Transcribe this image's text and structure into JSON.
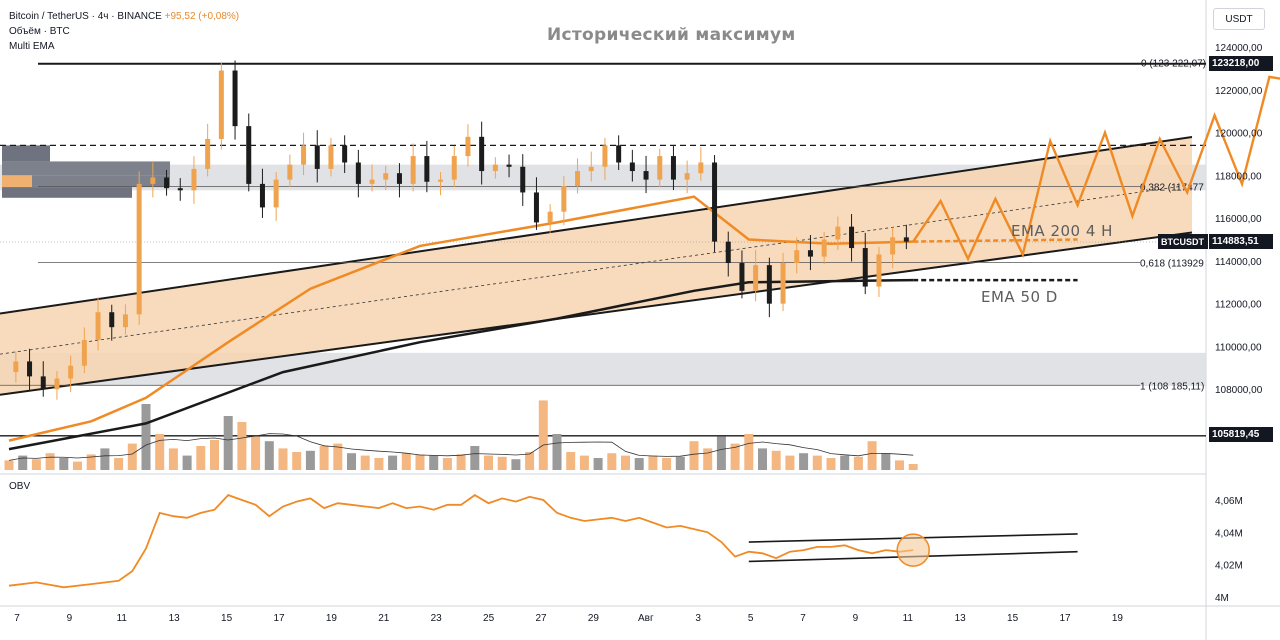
{
  "legend": {
    "symbol": "Bitcoin / TetherUS · 4ч · BINANCE",
    "change": "+95,52 (+0,08%)",
    "volume": "Объём · BTC",
    "indicator": "Multi EMA"
  },
  "annotations": {
    "ath": "Исторический максимум",
    "ema200": "EMA 200 4 H",
    "ema50": "EMA 50 D"
  },
  "currency_button": "USDT",
  "obv_label": "OBV",
  "price_tags": {
    "ath": "123218,00",
    "current_symbol": "BTCUSDT",
    "current": "114883,51",
    "support": "105819,45"
  },
  "fib_labels": {
    "f0": "0 (123 222,07)",
    "f382": "0,382 (117477",
    "f618": "0,618 (113929",
    "f1": "1 (108 185,11)"
  },
  "colors": {
    "orange": "#f08a24",
    "band_fill": "#f7d5b0",
    "gray_zone": "#dcdde0",
    "candle": "#f0a34e",
    "candle_dark": "#1c1c1c",
    "volume_up": "#f5b781",
    "volume_down": "#9a9a9a"
  },
  "chart_data": [
    {
      "type": "candlestick",
      "symbol": "BTCUSDT",
      "timeframe": "4h",
      "ylim": [
        104800,
        124800
      ],
      "y_ticks": [
        {
          "v": 124000,
          "label": "124000,00"
        },
        {
          "v": 122000,
          "label": "122000,00"
        },
        {
          "v": 120000,
          "label": "120000,00"
        },
        {
          "v": 118000,
          "label": "118000,00"
        },
        {
          "v": 116000,
          "label": "116000,00"
        },
        {
          "v": 114000,
          "label": "114000,00"
        },
        {
          "v": 112000,
          "label": "112000,00"
        },
        {
          "v": 110000,
          "label": "110000,00"
        },
        {
          "v": 108000,
          "label": "108000,00"
        }
      ],
      "x_ticks": [
        "7",
        "9",
        "11",
        "13",
        "15",
        "17",
        "19",
        "21",
        "23",
        "25",
        "27",
        "29",
        "Авг",
        "3",
        "5",
        "7",
        "9",
        "11",
        "13",
        "15",
        "17",
        "19"
      ],
      "price_path": [
        [
          0,
          108800
        ],
        [
          1,
          109300
        ],
        [
          2,
          108600
        ],
        [
          3,
          108000
        ],
        [
          4,
          108500
        ],
        [
          5,
          109100
        ],
        [
          6,
          110300
        ],
        [
          7,
          111600
        ],
        [
          8,
          110900
        ],
        [
          9,
          111500
        ],
        [
          10,
          117600
        ],
        [
          11,
          117900
        ],
        [
          12,
          117400
        ],
        [
          13,
          117300
        ],
        [
          14,
          118300
        ],
        [
          15,
          119700
        ],
        [
          16,
          122900
        ],
        [
          17,
          120300
        ],
        [
          18,
          117600
        ],
        [
          19,
          116500
        ],
        [
          20,
          117800
        ],
        [
          21,
          118500
        ],
        [
          22,
          119400
        ],
        [
          23,
          118300
        ],
        [
          24,
          119400
        ],
        [
          25,
          118600
        ],
        [
          26,
          117600
        ],
        [
          27,
          117800
        ],
        [
          28,
          118100
        ],
        [
          29,
          117600
        ],
        [
          30,
          118900
        ],
        [
          31,
          117700
        ],
        [
          32,
          117800
        ],
        [
          33,
          118900
        ],
        [
          34,
          119800
        ],
        [
          35,
          118200
        ],
        [
          36,
          118500
        ],
        [
          37,
          118400
        ],
        [
          38,
          117200
        ],
        [
          39,
          115800
        ],
        [
          40,
          116300
        ],
        [
          41,
          117500
        ],
        [
          42,
          118200
        ],
        [
          43,
          118400
        ],
        [
          44,
          119400
        ],
        [
          45,
          118600
        ],
        [
          46,
          118200
        ],
        [
          47,
          117800
        ],
        [
          48,
          118900
        ],
        [
          49,
          117800
        ],
        [
          50,
          118100
        ],
        [
          51,
          118600
        ],
        [
          52,
          114900
        ],
        [
          53,
          113900
        ],
        [
          54,
          112600
        ],
        [
          55,
          113800
        ],
        [
          56,
          112000
        ],
        [
          57,
          113900
        ],
        [
          58,
          114500
        ],
        [
          59,
          114200
        ],
        [
          60,
          115000
        ],
        [
          61,
          115600
        ],
        [
          62,
          114600
        ],
        [
          63,
          112800
        ],
        [
          64,
          114300
        ],
        [
          65,
          115100
        ],
        [
          66,
          114900
        ]
      ],
      "fib_levels": [
        {
          "level": "0",
          "value": 123222
        },
        {
          "level": "0.382",
          "value": 117477
        },
        {
          "level": "0.618",
          "value": 113929
        },
        {
          "level": "1",
          "value": 108185
        }
      ],
      "horizontal_levels": {
        "ath": 123218,
        "resistance_dashed": 119400,
        "current": 114883.51,
        "support": 105819.45
      },
      "ema200_4h": [
        [
          0,
          105600
        ],
        [
          6,
          106500
        ],
        [
          10,
          107600
        ],
        [
          16,
          110200
        ],
        [
          22,
          112700
        ],
        [
          30,
          114700
        ],
        [
          40,
          115800
        ],
        [
          50,
          117000
        ],
        [
          54,
          115000
        ],
        [
          60,
          114800
        ],
        [
          66,
          114900
        ],
        [
          78,
          115000
        ]
      ],
      "ema50_d": [
        [
          0,
          105200
        ],
        [
          10,
          106400
        ],
        [
          20,
          108800
        ],
        [
          30,
          110200
        ],
        [
          40,
          111300
        ],
        [
          50,
          112600
        ],
        [
          54,
          113000
        ],
        [
          66,
          113100
        ],
        [
          78,
          113100
        ]
      ],
      "channel": {
        "upper": [
          [
            0,
            111600
          ],
          [
            78,
            119000
          ]
        ],
        "lower": [
          [
            0,
            107800
          ],
          [
            78,
            114600
          ]
        ]
      },
      "projection_zigzag": [
        [
          66,
          114900
        ],
        [
          68,
          116800
        ],
        [
          70,
          114100
        ],
        [
          72,
          116900
        ],
        [
          74,
          114300
        ],
        [
          76,
          119600
        ],
        [
          78,
          116600
        ],
        [
          80,
          120000
        ],
        [
          82,
          116100
        ],
        [
          84,
          119700
        ],
        [
          86,
          117200
        ],
        [
          88,
          120800
        ],
        [
          90,
          117600
        ],
        [
          92,
          122600
        ],
        [
          94,
          122400
        ]
      ],
      "volume": [
        {
          "x": 0,
          "v": 0.08
        },
        {
          "x": 1,
          "v": 0.12
        },
        {
          "x": 2,
          "v": 0.09
        },
        {
          "x": 3,
          "v": 0.14
        },
        {
          "x": 4,
          "v": 0.1
        },
        {
          "x": 5,
          "v": 0.07
        },
        {
          "x": 6,
          "v": 0.13
        },
        {
          "x": 7,
          "v": 0.18
        },
        {
          "x": 8,
          "v": 0.1
        },
        {
          "x": 9,
          "v": 0.22
        },
        {
          "x": 10,
          "v": 0.55
        },
        {
          "x": 11,
          "v": 0.3
        },
        {
          "x": 12,
          "v": 0.18
        },
        {
          "x": 13,
          "v": 0.12
        },
        {
          "x": 14,
          "v": 0.2
        },
        {
          "x": 15,
          "v": 0.25
        },
        {
          "x": 16,
          "v": 0.45
        },
        {
          "x": 17,
          "v": 0.4
        },
        {
          "x": 18,
          "v": 0.28
        },
        {
          "x": 19,
          "v": 0.24
        },
        {
          "x": 20,
          "v": 0.18
        },
        {
          "x": 21,
          "v": 0.15
        },
        {
          "x": 22,
          "v": 0.16
        },
        {
          "x": 23,
          "v": 0.2
        },
        {
          "x": 24,
          "v": 0.22
        },
        {
          "x": 25,
          "v": 0.14
        },
        {
          "x": 26,
          "v": 0.12
        },
        {
          "x": 27,
          "v": 0.1
        },
        {
          "x": 28,
          "v": 0.12
        },
        {
          "x": 29,
          "v": 0.14
        },
        {
          "x": 30,
          "v": 0.13
        },
        {
          "x": 31,
          "v": 0.12
        },
        {
          "x": 32,
          "v": 0.1
        },
        {
          "x": 33,
          "v": 0.13
        },
        {
          "x": 34,
          "v": 0.2
        },
        {
          "x": 35,
          "v": 0.12
        },
        {
          "x": 36,
          "v": 0.11
        },
        {
          "x": 37,
          "v": 0.09
        },
        {
          "x": 38,
          "v": 0.15
        },
        {
          "x": 39,
          "v": 0.58
        },
        {
          "x": 40,
          "v": 0.3
        },
        {
          "x": 41,
          "v": 0.15
        },
        {
          "x": 42,
          "v": 0.12
        },
        {
          "x": 43,
          "v": 0.1
        },
        {
          "x": 44,
          "v": 0.14
        },
        {
          "x": 45,
          "v": 0.12
        },
        {
          "x": 46,
          "v": 0.1
        },
        {
          "x": 47,
          "v": 0.12
        },
        {
          "x": 48,
          "v": 0.1
        },
        {
          "x": 49,
          "v": 0.11
        },
        {
          "x": 50,
          "v": 0.24
        },
        {
          "x": 51,
          "v": 0.18
        },
        {
          "x": 52,
          "v": 0.28
        },
        {
          "x": 53,
          "v": 0.22
        },
        {
          "x": 54,
          "v": 0.3
        },
        {
          "x": 55,
          "v": 0.18
        },
        {
          "x": 56,
          "v": 0.16
        },
        {
          "x": 57,
          "v": 0.12
        },
        {
          "x": 58,
          "v": 0.14
        },
        {
          "x": 59,
          "v": 0.12
        },
        {
          "x": 60,
          "v": 0.1
        },
        {
          "x": 61,
          "v": 0.12
        },
        {
          "x": 62,
          "v": 0.11
        },
        {
          "x": 63,
          "v": 0.24
        },
        {
          "x": 64,
          "v": 0.14
        },
        {
          "x": 65,
          "v": 0.08
        },
        {
          "x": 66,
          "v": 0.05
        }
      ]
    },
    {
      "type": "line",
      "name": "OBV",
      "ylim": [
        3.985,
        4.072
      ],
      "y_ticks": [
        {
          "v": 4.06,
          "label": "4,06M"
        },
        {
          "v": 4.04,
          "label": "4,04M"
        },
        {
          "v": 4.02,
          "label": "4,02M"
        },
        {
          "v": 4.0,
          "label": "4M"
        }
      ],
      "values": [
        [
          0,
          4.007
        ],
        [
          2,
          4.009
        ],
        [
          4,
          4.006
        ],
        [
          6,
          4.008
        ],
        [
          8,
          4.01
        ],
        [
          9,
          4.016
        ],
        [
          10,
          4.03
        ],
        [
          11,
          4.052
        ],
        [
          12,
          4.05
        ],
        [
          13,
          4.049
        ],
        [
          14,
          4.052
        ],
        [
          15,
          4.054
        ],
        [
          16,
          4.063
        ],
        [
          17,
          4.06
        ],
        [
          18,
          4.057
        ],
        [
          19,
          4.05
        ],
        [
          20,
          4.056
        ],
        [
          21,
          4.059
        ],
        [
          22,
          4.061
        ],
        [
          23,
          4.055
        ],
        [
          24,
          4.058
        ],
        [
          25,
          4.057
        ],
        [
          26,
          4.056
        ],
        [
          27,
          4.055
        ],
        [
          28,
          4.058
        ],
        [
          29,
          4.055
        ],
        [
          30,
          4.056
        ],
        [
          31,
          4.054
        ],
        [
          32,
          4.057
        ],
        [
          33,
          4.057
        ],
        [
          34,
          4.063
        ],
        [
          35,
          4.058
        ],
        [
          36,
          4.061
        ],
        [
          37,
          4.059
        ],
        [
          38,
          4.062
        ],
        [
          39,
          4.06
        ],
        [
          40,
          4.052
        ],
        [
          41,
          4.049
        ],
        [
          42,
          4.047
        ],
        [
          43,
          4.048
        ],
        [
          44,
          4.049
        ],
        [
          45,
          4.047
        ],
        [
          46,
          4.049
        ],
        [
          47,
          4.046
        ],
        [
          48,
          4.043
        ],
        [
          49,
          4.044
        ],
        [
          50,
          4.042
        ],
        [
          51,
          4.04
        ],
        [
          52,
          4.034
        ],
        [
          53,
          4.025
        ],
        [
          54,
          4.028
        ],
        [
          55,
          4.027
        ],
        [
          56,
          4.024
        ],
        [
          57,
          4.028
        ],
        [
          58,
          4.029
        ],
        [
          59,
          4.031
        ],
        [
          60,
          4.031
        ],
        [
          61,
          4.032
        ],
        [
          62,
          4.029
        ],
        [
          63,
          4.027
        ],
        [
          64,
          4.029
        ],
        [
          65,
          4.028
        ],
        [
          66,
          4.029
        ]
      ],
      "channel": {
        "upper": [
          [
            54,
            4.034
          ],
          [
            78,
            4.039
          ]
        ],
        "lower": [
          [
            54,
            4.022
          ],
          [
            78,
            4.028
          ]
        ]
      },
      "highlight_circle_at": [
        66,
        4.029
      ]
    }
  ]
}
